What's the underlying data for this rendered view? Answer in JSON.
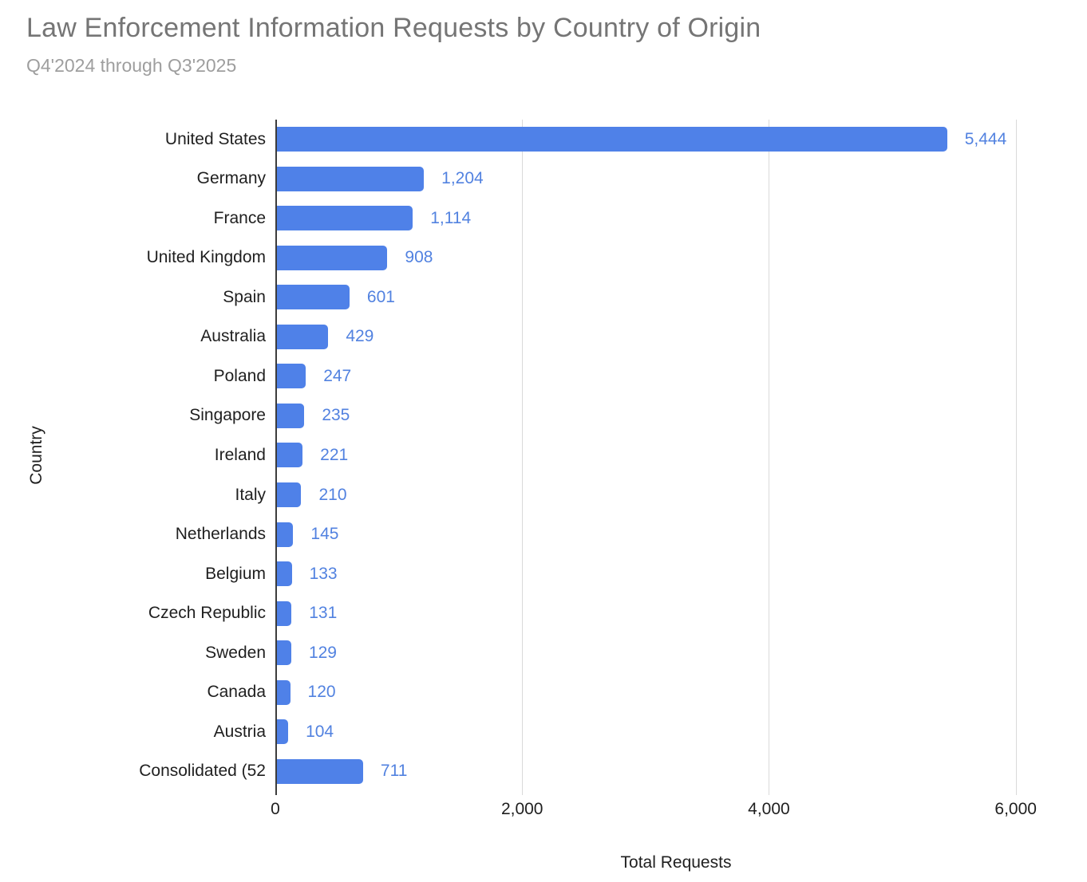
{
  "header": {
    "title": "Law Enforcement Information Requests by Country of Origin",
    "subtitle": "Q4'2024 through Q3'2025"
  },
  "chart_data": {
    "type": "bar",
    "orientation": "horizontal",
    "title": "Law Enforcement Information Requests by Country of Origin",
    "subtitle": "Q4'2024 through Q3'2025",
    "xlabel": "Total Requests",
    "ylabel": "Country",
    "categories": [
      "United States",
      "Germany",
      "France",
      "United Kingdom",
      "Spain",
      "Australia",
      "Poland",
      "Singapore",
      "Ireland",
      "Italy",
      "Netherlands",
      "Belgium",
      "Czech Republic",
      "Sweden",
      "Canada",
      "Austria",
      "Consolidated (52"
    ],
    "values": [
      5444,
      1204,
      1114,
      908,
      601,
      429,
      247,
      235,
      221,
      210,
      145,
      133,
      131,
      129,
      120,
      104,
      711
    ],
    "value_labels": [
      "5,444",
      "1,204",
      "1,114",
      "908",
      "601",
      "429",
      "247",
      "235",
      "221",
      "210",
      "145",
      "133",
      "131",
      "129",
      "120",
      "104",
      "711"
    ],
    "xlim": [
      0,
      6500
    ],
    "xticks": [
      {
        "value": 0,
        "label": "0"
      },
      {
        "value": 2000,
        "label": "2,000"
      },
      {
        "value": 4000,
        "label": "4,000"
      },
      {
        "value": 6000,
        "label": "6,000"
      }
    ],
    "grid": "vertical-gridlines-on",
    "legend": "none",
    "colors": {
      "bar": "#4f81e8",
      "value_label": "#5282e0",
      "axis_line": "#3c3c3c",
      "gridline": "#d9d9d9",
      "title": "#757575",
      "subtitle": "#9e9e9e",
      "text": "#1f1f1f"
    }
  }
}
